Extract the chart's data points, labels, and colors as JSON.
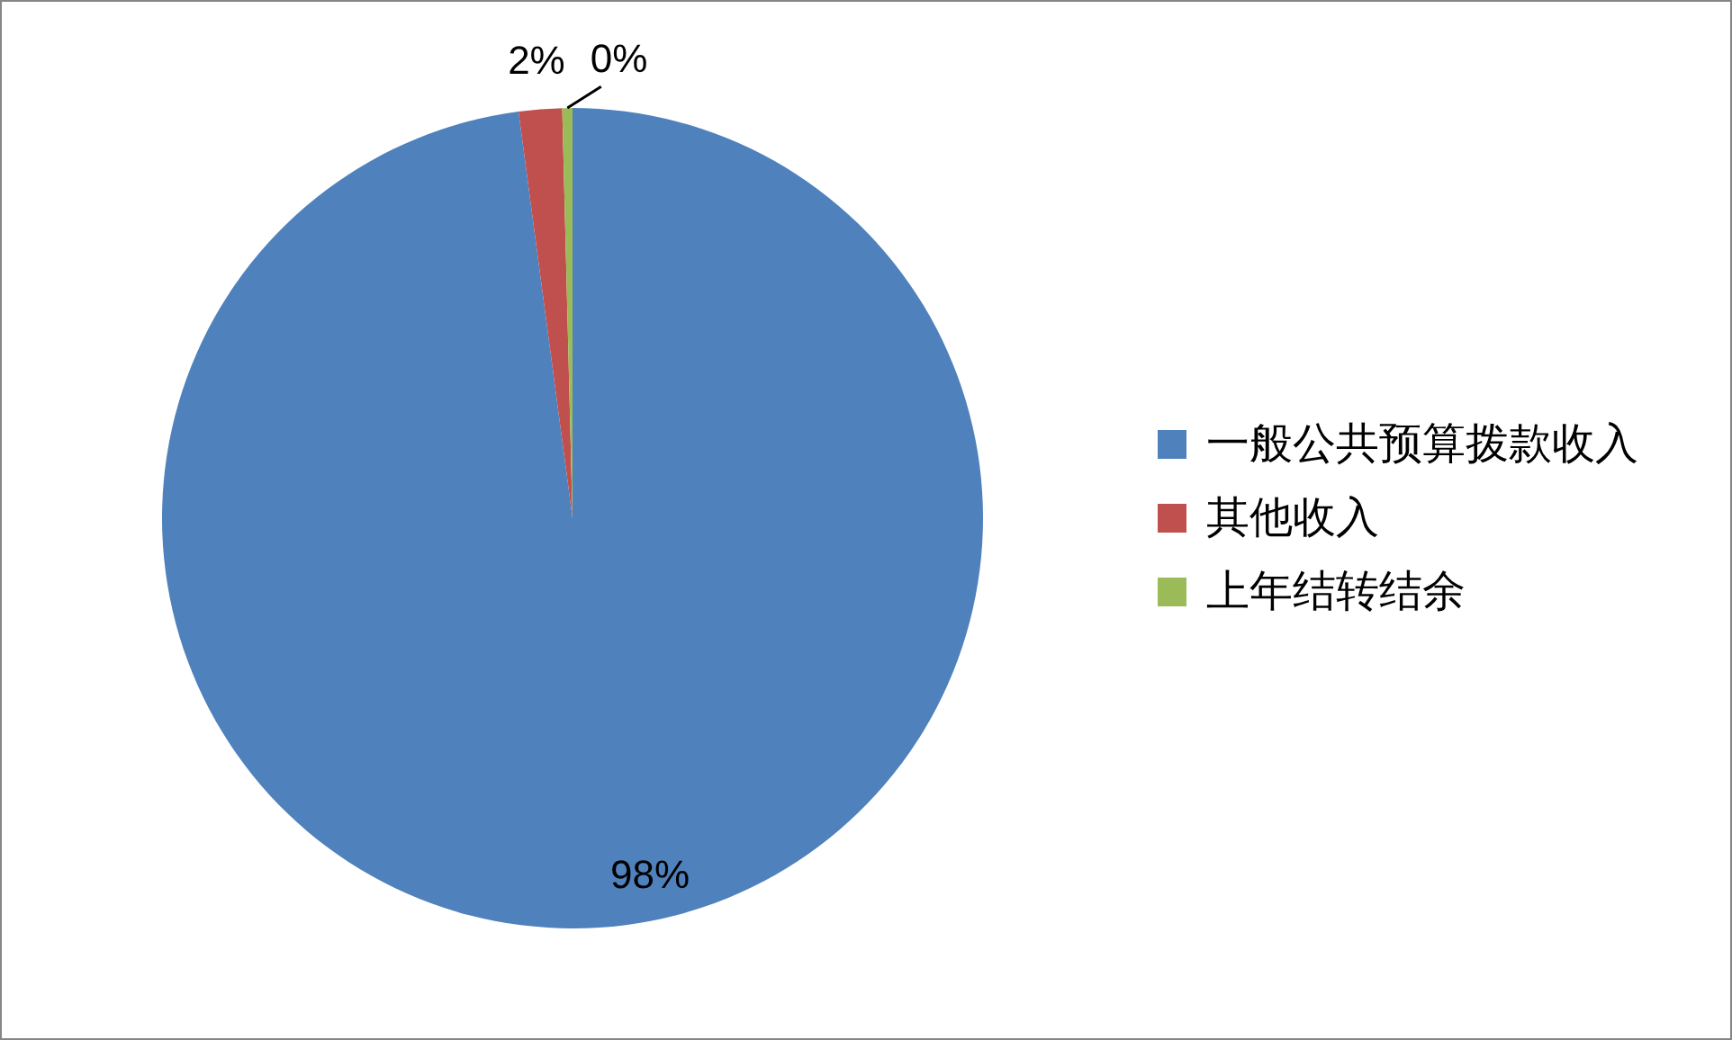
{
  "chart_data": {
    "type": "pie",
    "categories": [
      "一般公共预算拨款收入",
      "其他收入",
      "上年结转结余"
    ],
    "values": [
      97.9,
      1.7,
      0.4
    ],
    "colors": [
      "#4f81bd",
      "#c0504d",
      "#9bbb59"
    ],
    "value_labels": [
      "98%",
      "2%",
      "0%"
    ],
    "legend": "right"
  }
}
